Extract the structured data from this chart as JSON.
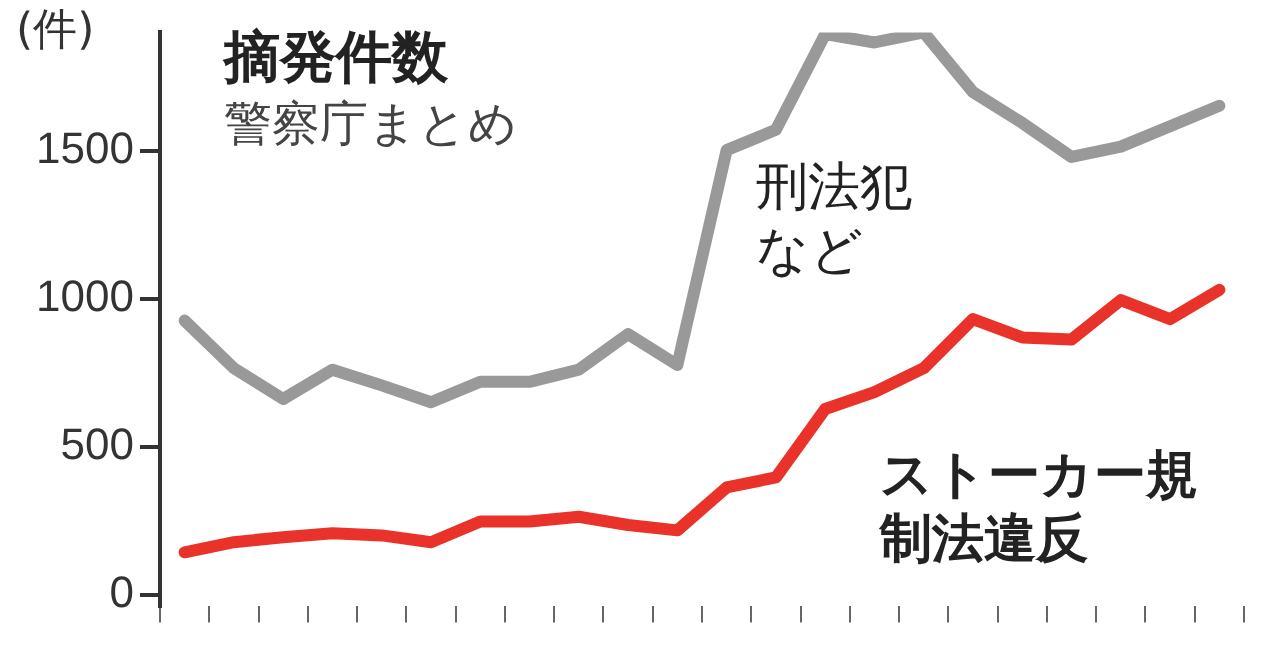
{
  "chart_data": {
    "type": "line",
    "title": "摘発件数",
    "subtitle": "警察庁まとめ",
    "ylabel": "(件)",
    "categories": [
      null,
      null,
      null,
      null,
      null,
      null,
      null,
      null,
      null,
      null,
      null,
      null,
      null,
      null,
      null,
      null,
      null,
      null,
      null,
      null,
      null,
      null
    ],
    "series": [
      {
        "name": "刑法犯など",
        "color": "#999999",
        "values": [
          926,
          765,
          661,
          760,
          707,
          650,
          719,
          719,
          760,
          880,
          776,
          1502,
          1571,
          1894,
          1866,
          1900,
          1698,
          1594,
          1479,
          1514,
          1583,
          1652
        ]
      },
      {
        "name": "ストーカー規制法違反",
        "color": "#e8322a",
        "values": [
          143,
          177,
          194,
          207,
          200,
          177,
          247,
          247,
          263,
          235,
          217,
          362,
          396,
          627,
          684,
          765,
          931,
          869,
          862,
          995,
          931,
          1030
        ]
      }
    ],
    "ylim": [
      -40,
      1900
    ],
    "yticks": [
      0,
      500,
      1000,
      1500
    ],
    "grid": false,
    "legend": false,
    "marker": "none",
    "line_style": "solid"
  }
}
